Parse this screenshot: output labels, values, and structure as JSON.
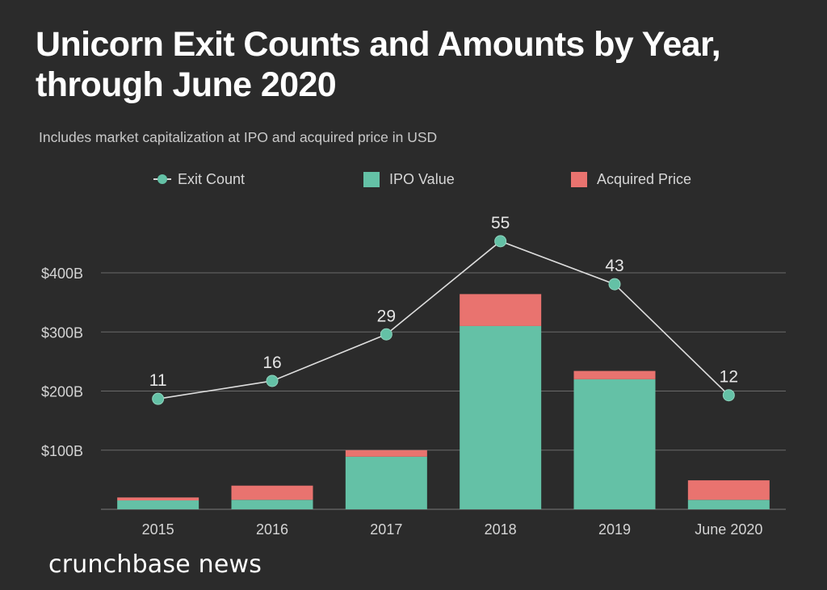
{
  "header": {
    "title_line1": "Unicorn Exit Counts and Amounts by Year,",
    "title_line2": "through June 2020",
    "subtitle": "Includes market capitalization at IPO and acquired price in USD"
  },
  "legend": {
    "items": [
      {
        "label": "Exit Count",
        "type": "line",
        "color": "#64C1A6"
      },
      {
        "label": "IPO Value",
        "type": "bar",
        "color": "#64C1A6"
      },
      {
        "label": "Acquired Price",
        "type": "bar",
        "color": "#E9736F"
      }
    ]
  },
  "footer": {
    "logo_text": "crunchbase news"
  },
  "chart_data": {
    "type": "bar",
    "stacked": true,
    "title": "Unicorn Exit Counts and Amounts by Year, through June 2020",
    "subtitle": "Includes market capitalization at IPO and acquired price in USD",
    "categories": [
      "2015",
      "2016",
      "2017",
      "2018",
      "2019",
      "June 2020"
    ],
    "series": [
      {
        "name": "IPO Value",
        "type": "bar",
        "axis": "left",
        "unit": "USD billions",
        "color": "#64C1A6",
        "values": [
          15,
          16,
          89,
          310,
          220,
          16
        ]
      },
      {
        "name": "Acquired Price",
        "type": "bar",
        "axis": "left",
        "unit": "USD billions",
        "color": "#E9736F",
        "values": [
          5,
          24,
          11,
          54,
          14,
          33
        ]
      },
      {
        "name": "Exit Count",
        "type": "line",
        "axis": "right-hidden",
        "color": "#64C1A6",
        "line_color": "#DDDDDD",
        "values": [
          11,
          16,
          29,
          55,
          43,
          12
        ],
        "data_labels": [
          "11",
          "16",
          "29",
          "55",
          "43",
          "12"
        ]
      }
    ],
    "xlabel": "",
    "ylabel": "",
    "ylim": [
      0,
      400
    ],
    "yticks": [
      100,
      200,
      300,
      400
    ],
    "ytick_labels": [
      "$100B",
      "$200B",
      "$300B",
      "$400B"
    ],
    "secondary_ylim": [
      0,
      66
    ],
    "grid": true,
    "legend_position": "top"
  }
}
